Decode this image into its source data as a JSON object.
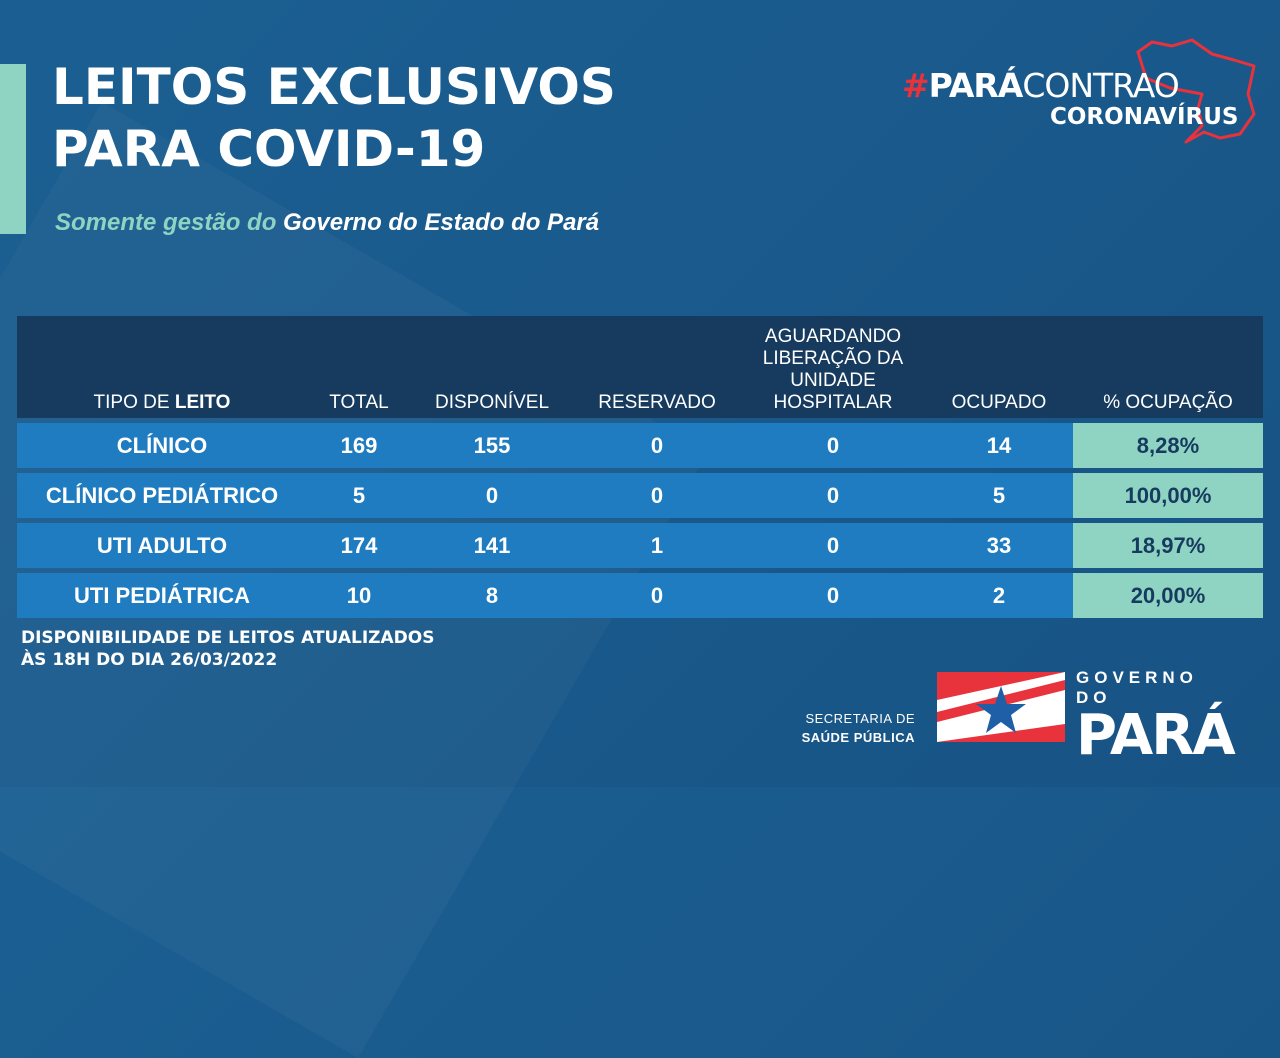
{
  "header": {
    "title_line1": "LEITOS EXCLUSIVOS",
    "title_line2": "PARA COVID-19",
    "subtitle_part1": "Somente gestão do",
    "subtitle_part2": "Governo do Estado do Pará"
  },
  "brand": {
    "hash": "#",
    "para": "PARÁ",
    "contra": "CONTRAO",
    "line2": "CORONAVÍRUS",
    "outline_color": "#e8323c"
  },
  "table": {
    "headers": {
      "tipo_prefix": "TIPO DE",
      "tipo_bold": "LEITO",
      "total": "TOTAL",
      "disponivel": "DISPONÍVEL",
      "reservado": "RESERVADO",
      "aguardando_l1": "AGUARDANDO",
      "aguardando_l2": "LIBERAÇÃO DA",
      "aguardando_l3": "UNIDADE",
      "aguardando_l4": "HOSPITALAR",
      "ocupado": "OCUPADO",
      "ocupacao": "% OCUPAÇÃO"
    },
    "rows": [
      {
        "tipo": "CLÍNICO",
        "total": "169",
        "disponivel": "155",
        "reservado": "0",
        "aguardando": "0",
        "ocupado": "14",
        "ocupacao": "8,28%"
      },
      {
        "tipo": "CLÍNICO PEDIÁTRICO",
        "total": "5",
        "disponivel": "0",
        "reservado": "0",
        "aguardando": "0",
        "ocupado": "5",
        "ocupacao": "100,00%"
      },
      {
        "tipo": "UTI ADULTO",
        "total": "174",
        "disponivel": "141",
        "reservado": "1",
        "aguardando": "0",
        "ocupado": "33",
        "ocupacao": "18,97%"
      },
      {
        "tipo": "UTI PEDIÁTRICA",
        "total": "10",
        "disponivel": "8",
        "reservado": "0",
        "aguardando": "0",
        "ocupado": "2",
        "ocupacao": "20,00%"
      }
    ]
  },
  "footnote": {
    "line1": "DISPONIBILIDADE DE LEITOS ATUALIZADOS",
    "line2": "ÀS 18H DO DIA 26/03/2022"
  },
  "footer": {
    "secretaria_l1": "SECRETARIA DE",
    "secretaria_l2": "SAÚDE PÚBLICA",
    "gov_l1": "GOVERNO DO",
    "gov_l2": "PARÁ",
    "flag_icon": "para-flag-icon"
  },
  "colors": {
    "background": "#1b5f92",
    "accent": "#8fd3c2",
    "header_bg": "#163b5e",
    "row_bg": "#1f7cc0",
    "brand_red": "#e8323c"
  }
}
